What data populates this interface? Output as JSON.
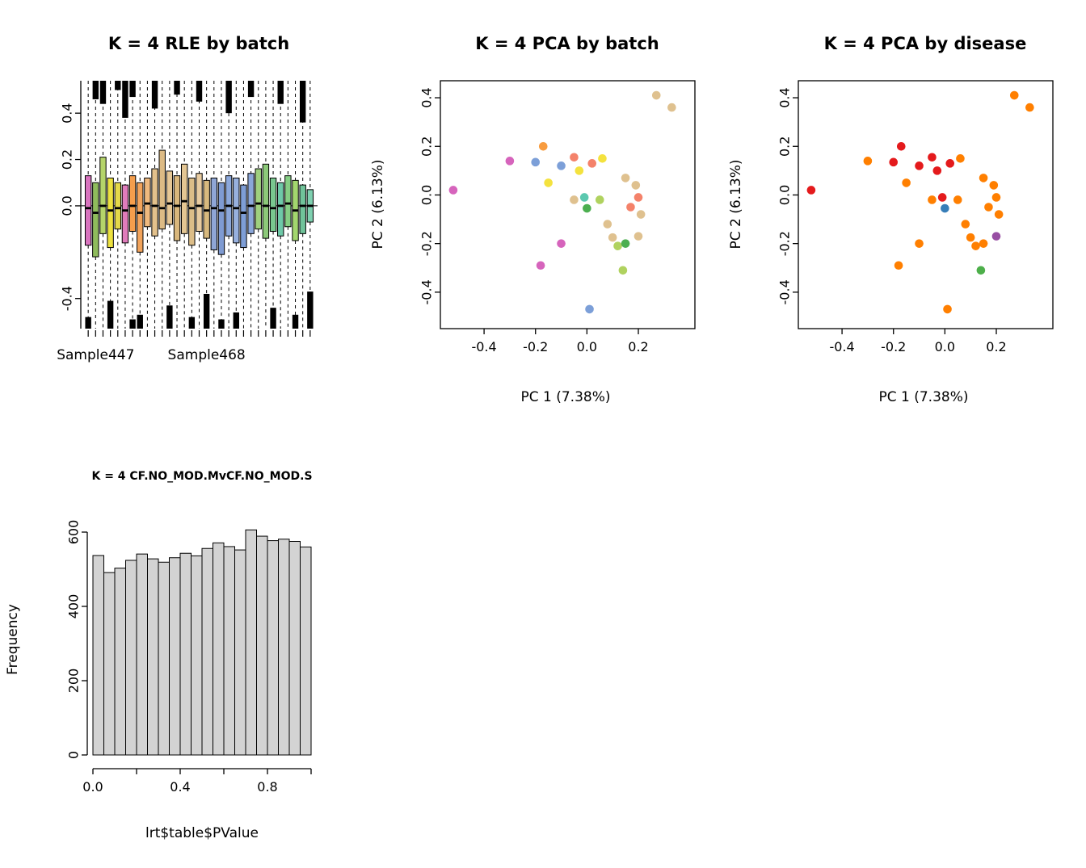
{
  "meta": {
    "background": "#ffffff"
  },
  "chart_data": [
    {
      "id": "rle_by_batch",
      "type": "boxplot",
      "title": "K = 4 RLE by batch",
      "ylim": [
        -0.53,
        0.54
      ],
      "yticks": [
        "0.4",
        "0.2",
        "0.0",
        "-0.4"
      ],
      "zero_line": 0,
      "x_tick_labels": [
        {
          "label": "Sample447",
          "index": 1
        },
        {
          "label": "Sample468",
          "index": 16
        }
      ],
      "boxes": [
        {
          "color": "#D873BE",
          "q1": -0.17,
          "med": -0.01,
          "q3": 0.13,
          "top": 0,
          "bot": 0.05
        },
        {
          "color": "#8FBC5C",
          "q1": -0.22,
          "med": -0.03,
          "q3": 0.1,
          "top": 0.08,
          "bot": 0
        },
        {
          "color": "#B5D46A",
          "q1": -0.12,
          "med": 0.0,
          "q3": 0.21,
          "top": 0.1,
          "bot": 0
        },
        {
          "color": "#EDE13F",
          "q1": -0.18,
          "med": -0.02,
          "q3": 0.12,
          "top": 0,
          "bot": 0.12
        },
        {
          "color": "#E4D84A",
          "q1": -0.1,
          "med": -0.01,
          "q3": 0.1,
          "top": 0.04,
          "bot": 0
        },
        {
          "color": "#E07CBB",
          "q1": -0.16,
          "med": -0.02,
          "q3": 0.09,
          "top": 0.16,
          "bot": 0
        },
        {
          "color": "#F59E4C",
          "q1": -0.11,
          "med": 0.0,
          "q3": 0.13,
          "top": 0.07,
          "bot": 0.04
        },
        {
          "color": "#F2A45C",
          "q1": -0.2,
          "med": -0.03,
          "q3": 0.1,
          "top": 0,
          "bot": 0.06
        },
        {
          "color": "#EFB97E",
          "q1": -0.09,
          "med": 0.01,
          "q3": 0.12,
          "top": 0,
          "bot": 0
        },
        {
          "color": "#E3C18C",
          "q1": -0.13,
          "med": 0.0,
          "q3": 0.16,
          "top": 0.12,
          "bot": 0
        },
        {
          "color": "#DDBB85",
          "q1": -0.1,
          "med": -0.01,
          "q3": 0.24,
          "top": 0,
          "bot": 0
        },
        {
          "color": "#E6C795",
          "q1": -0.08,
          "med": 0.01,
          "q3": 0.15,
          "top": 0,
          "bot": 0.1
        },
        {
          "color": "#D9B77C",
          "q1": -0.15,
          "med": 0.0,
          "q3": 0.13,
          "top": 0.06,
          "bot": 0
        },
        {
          "color": "#E4C693",
          "q1": -0.12,
          "med": 0.02,
          "q3": 0.18,
          "top": 0,
          "bot": 0
        },
        {
          "color": "#DCBD88",
          "q1": -0.17,
          "med": -0.01,
          "q3": 0.12,
          "top": 0,
          "bot": 0.05
        },
        {
          "color": "#E8CBA0",
          "q1": -0.11,
          "med": 0.0,
          "q3": 0.14,
          "top": 0.09,
          "bot": 0
        },
        {
          "color": "#D8B97E",
          "q1": -0.14,
          "med": -0.02,
          "q3": 0.11,
          "top": 0,
          "bot": 0.15
        },
        {
          "color": "#8FA6D6",
          "q1": -0.19,
          "med": -0.01,
          "q3": 0.12,
          "top": 0,
          "bot": 0
        },
        {
          "color": "#7F9BD2",
          "q1": -0.21,
          "med": -0.02,
          "q3": 0.1,
          "top": 0,
          "bot": 0.04
        },
        {
          "color": "#8CA8DB",
          "q1": -0.13,
          "med": 0.0,
          "q3": 0.13,
          "top": 0.14,
          "bot": 0
        },
        {
          "color": "#97B0DE",
          "q1": -0.16,
          "med": -0.01,
          "q3": 0.12,
          "top": 0,
          "bot": 0.07
        },
        {
          "color": "#7E9ED6",
          "q1": -0.18,
          "med": -0.03,
          "q3": 0.09,
          "top": 0,
          "bot": 0
        },
        {
          "color": "#8BA7D9",
          "q1": -0.12,
          "med": 0.0,
          "q3": 0.14,
          "top": 0.07,
          "bot": 0
        },
        {
          "color": "#9FD07E",
          "q1": -0.1,
          "med": 0.01,
          "q3": 0.16,
          "top": 0,
          "bot": 0
        },
        {
          "color": "#8CC979",
          "q1": -0.14,
          "med": 0.0,
          "q3": 0.18,
          "top": 0,
          "bot": 0
        },
        {
          "color": "#79C78F",
          "q1": -0.11,
          "med": -0.01,
          "q3": 0.12,
          "top": 0,
          "bot": 0.09
        },
        {
          "color": "#6EC9A8",
          "q1": -0.13,
          "med": 0.0,
          "q3": 0.1,
          "top": 0.1,
          "bot": 0
        },
        {
          "color": "#85CE84",
          "q1": -0.09,
          "med": 0.01,
          "q3": 0.13,
          "top": 0,
          "bot": 0
        },
        {
          "color": "#A3D66E",
          "q1": -0.15,
          "med": -0.02,
          "q3": 0.11,
          "top": 0,
          "bot": 0.06
        },
        {
          "color": "#70C39A",
          "q1": -0.12,
          "med": 0.0,
          "q3": 0.09,
          "top": 0.18,
          "bot": 0
        },
        {
          "color": "#7FD0B0",
          "q1": -0.07,
          "med": 0.0,
          "q3": 0.07,
          "top": 0,
          "bot": 0.16
        }
      ]
    },
    {
      "id": "pca_by_batch",
      "type": "scatter",
      "title": "K = 4 PCA by batch",
      "xlabel": "PC 1 (7.38%)",
      "ylabel": "PC 2 (6.13%)",
      "xlim": [
        -0.57,
        0.42
      ],
      "ylim": [
        -0.55,
        0.47
      ],
      "xticks": [
        "-0.4",
        "-0.2",
        "0.0",
        "0.2"
      ],
      "yticks": [
        "0.4",
        "0.2",
        "0.0",
        "-0.2",
        "-0.4"
      ],
      "points": [
        {
          "x": -0.52,
          "y": 0.02,
          "color": "#D664BC"
        },
        {
          "x": -0.3,
          "y": 0.14,
          "color": "#D664BC"
        },
        {
          "x": -0.2,
          "y": 0.135,
          "color": "#7C9FD8"
        },
        {
          "x": -0.17,
          "y": 0.2,
          "color": "#F89C3F"
        },
        {
          "x": -0.15,
          "y": 0.05,
          "color": "#F4E23E"
        },
        {
          "x": -0.1,
          "y": 0.12,
          "color": "#7C9FD8"
        },
        {
          "x": -0.05,
          "y": 0.155,
          "color": "#F4826A"
        },
        {
          "x": -0.03,
          "y": 0.1,
          "color": "#F4E23E"
        },
        {
          "x": 0.02,
          "y": 0.13,
          "color": "#F4826A"
        },
        {
          "x": 0.06,
          "y": 0.15,
          "color": "#F4E23E"
        },
        {
          "x": -0.05,
          "y": -0.02,
          "color": "#DFC18F"
        },
        {
          "x": -0.01,
          "y": -0.01,
          "color": "#5BC8AF"
        },
        {
          "x": 0.0,
          "y": -0.055,
          "color": "#4CAF50"
        },
        {
          "x": 0.05,
          "y": -0.02,
          "color": "#B0D25F"
        },
        {
          "x": -0.1,
          "y": -0.2,
          "color": "#D664BC"
        },
        {
          "x": -0.18,
          "y": -0.29,
          "color": "#D664BC"
        },
        {
          "x": 0.08,
          "y": -0.12,
          "color": "#DFC18F"
        },
        {
          "x": 0.1,
          "y": -0.175,
          "color": "#DFC18F"
        },
        {
          "x": 0.12,
          "y": -0.21,
          "color": "#B0D25F"
        },
        {
          "x": 0.15,
          "y": -0.2,
          "color": "#4CAF50"
        },
        {
          "x": 0.17,
          "y": -0.05,
          "color": "#F4826A"
        },
        {
          "x": 0.2,
          "y": -0.01,
          "color": "#F4826A"
        },
        {
          "x": 0.21,
          "y": -0.08,
          "color": "#DFC18F"
        },
        {
          "x": 0.15,
          "y": 0.07,
          "color": "#DFC18F"
        },
        {
          "x": 0.19,
          "y": 0.04,
          "color": "#DFC18F"
        },
        {
          "x": 0.27,
          "y": 0.41,
          "color": "#DFC18F"
        },
        {
          "x": 0.33,
          "y": 0.36,
          "color": "#DFC18F"
        },
        {
          "x": 0.2,
          "y": -0.17,
          "color": "#DFC18F"
        },
        {
          "x": 0.14,
          "y": -0.31,
          "color": "#B0D25F"
        },
        {
          "x": 0.01,
          "y": -0.47,
          "color": "#7C9FD8"
        }
      ]
    },
    {
      "id": "pca_by_disease",
      "type": "scatter",
      "title": "K = 4 PCA by disease",
      "xlabel": "PC 1 (7.38%)",
      "ylabel": "PC 2 (6.13%)",
      "xlim": [
        -0.57,
        0.42
      ],
      "ylim": [
        -0.55,
        0.47
      ],
      "xticks": [
        "-0.4",
        "-0.2",
        "0.0",
        "0.2"
      ],
      "yticks": [
        "0.4",
        "0.2",
        "0.0",
        "-0.2",
        "-0.4"
      ],
      "points": [
        {
          "x": -0.52,
          "y": 0.02,
          "color": "#E41A1C"
        },
        {
          "x": -0.3,
          "y": 0.14,
          "color": "#FF7F00"
        },
        {
          "x": -0.2,
          "y": 0.135,
          "color": "#E41A1C"
        },
        {
          "x": -0.17,
          "y": 0.2,
          "color": "#E41A1C"
        },
        {
          "x": -0.15,
          "y": 0.05,
          "color": "#FF7F00"
        },
        {
          "x": -0.1,
          "y": 0.12,
          "color": "#E41A1C"
        },
        {
          "x": -0.05,
          "y": 0.155,
          "color": "#E41A1C"
        },
        {
          "x": -0.03,
          "y": 0.1,
          "color": "#E41A1C"
        },
        {
          "x": 0.02,
          "y": 0.13,
          "color": "#E41A1C"
        },
        {
          "x": 0.06,
          "y": 0.15,
          "color": "#FF7F00"
        },
        {
          "x": -0.05,
          "y": -0.02,
          "color": "#FF7F00"
        },
        {
          "x": -0.01,
          "y": -0.01,
          "color": "#E41A1C"
        },
        {
          "x": 0.0,
          "y": -0.055,
          "color": "#377EB8"
        },
        {
          "x": 0.05,
          "y": -0.02,
          "color": "#FF7F00"
        },
        {
          "x": -0.1,
          "y": -0.2,
          "color": "#FF7F00"
        },
        {
          "x": -0.18,
          "y": -0.29,
          "color": "#FF7F00"
        },
        {
          "x": 0.08,
          "y": -0.12,
          "color": "#FF7F00"
        },
        {
          "x": 0.1,
          "y": -0.175,
          "color": "#FF7F00"
        },
        {
          "x": 0.12,
          "y": -0.21,
          "color": "#FF7F00"
        },
        {
          "x": 0.15,
          "y": -0.2,
          "color": "#FF7F00"
        },
        {
          "x": 0.17,
          "y": -0.05,
          "color": "#FF7F00"
        },
        {
          "x": 0.2,
          "y": -0.01,
          "color": "#FF7F00"
        },
        {
          "x": 0.21,
          "y": -0.08,
          "color": "#FF7F00"
        },
        {
          "x": 0.15,
          "y": 0.07,
          "color": "#FF7F00"
        },
        {
          "x": 0.19,
          "y": 0.04,
          "color": "#FF7F00"
        },
        {
          "x": 0.27,
          "y": 0.41,
          "color": "#FF7F00"
        },
        {
          "x": 0.33,
          "y": 0.36,
          "color": "#FF7F00"
        },
        {
          "x": 0.2,
          "y": -0.17,
          "color": "#984EA3"
        },
        {
          "x": 0.14,
          "y": -0.31,
          "color": "#4DAF4A"
        },
        {
          "x": 0.01,
          "y": -0.47,
          "color": "#FF7F00"
        }
      ]
    },
    {
      "id": "pvalue_histogram",
      "type": "histogram",
      "title": "K = 4 CF.NO_MOD.MvCF.NO_MOD.S",
      "xlabel": "lrt$table$PValue",
      "ylabel": "Frequency",
      "bar_fill": "#D3D3D3",
      "bin_start": 0,
      "bin_width": 0.05,
      "counts": [
        537,
        491,
        503,
        524,
        541,
        528,
        519,
        531,
        543,
        536,
        556,
        571,
        561,
        552,
        606,
        589,
        577,
        581,
        575,
        560
      ],
      "yticks": [
        "0",
        "200",
        "400",
        "600"
      ],
      "xticks": [
        "0.0",
        "0.2",
        "0.4",
        "0.6",
        "0.8",
        "1.0"
      ],
      "xtick_labels": [
        "0.0",
        "",
        "0.4",
        "",
        "0.8",
        ""
      ]
    }
  ]
}
